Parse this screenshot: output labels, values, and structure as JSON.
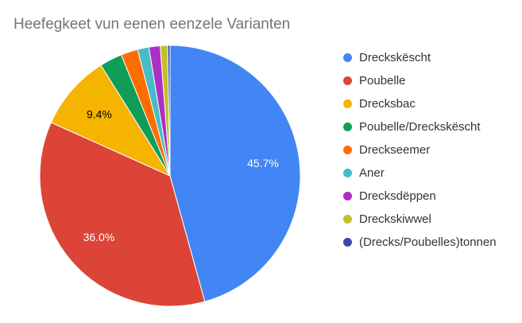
{
  "chart_data": {
    "type": "pie",
    "title": "Heefegkeet vun eenen eenzele Varianten",
    "slices": [
      {
        "label": "Dreckskëscht",
        "value": 45.7,
        "color": "#4285F4",
        "data_label": "45.7%"
      },
      {
        "label": "Poubelle",
        "value": 36.0,
        "color": "#DB4437",
        "data_label": "36.0%"
      },
      {
        "label": "Drecksbac",
        "value": 9.4,
        "color": "#F4B400",
        "data_label": "9.4%"
      },
      {
        "label": "Poubelle/Dreckskëscht",
        "value": 2.8,
        "color": "#0F9D58",
        "data_label": ""
      },
      {
        "label": "Dreckseemer",
        "value": 2.1,
        "color": "#FF6D00",
        "data_label": ""
      },
      {
        "label": "Aner",
        "value": 1.4,
        "color": "#46BDC6",
        "data_label": ""
      },
      {
        "label": "Drecksdëppen",
        "value": 1.4,
        "color": "#AB30C4",
        "data_label": ""
      },
      {
        "label": "Dreckskiwwel",
        "value": 0.9,
        "color": "#C0C029",
        "data_label": ""
      },
      {
        "label": "(Drecks/Poubelles)tonnen",
        "value": 0.3,
        "color": "#3949AB",
        "data_label": ""
      }
    ],
    "legend_position": "right",
    "data_label_color_light": "#ffffff",
    "data_label_color_dark": "#000000"
  }
}
